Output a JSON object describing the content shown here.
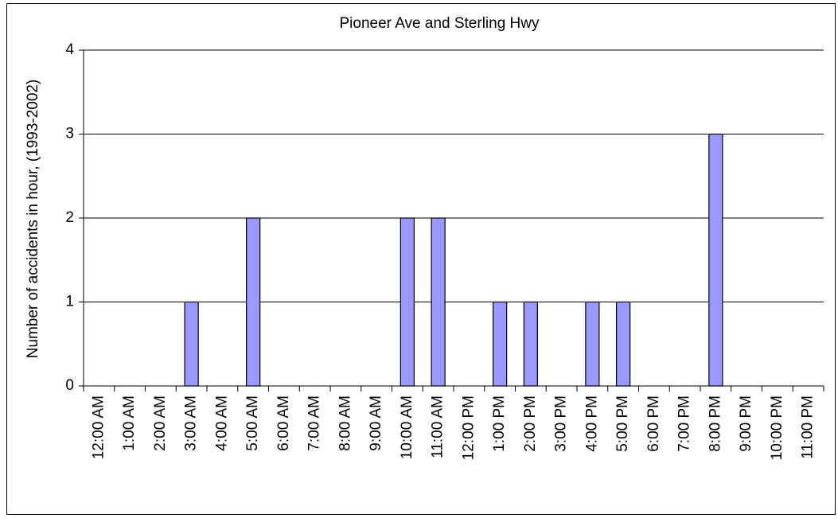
{
  "chart_data": {
    "type": "bar",
    "title": "Pioneer Ave and Sterling Hwy",
    "y_label": "Number of accidents in hour, (1993-2002)",
    "categories": [
      "12:00 AM",
      "1:00 AM",
      "2:00 AM",
      "3:00 AM",
      "4:00 AM",
      "5:00 AM",
      "6:00 AM",
      "7:00 AM",
      "8:00 AM",
      "9:00 AM",
      "10:00 AM",
      "11:00 AM",
      "12:00 PM",
      "1:00 PM",
      "2:00 PM",
      "3:00 PM",
      "4:00 PM",
      "5:00 PM",
      "6:00 PM",
      "7:00 PM",
      "8:00 PM",
      "9:00 PM",
      "10:00 PM",
      "11:00 PM"
    ],
    "values": [
      0,
      0,
      0,
      1,
      0,
      2,
      0,
      0,
      0,
      0,
      2,
      2,
      0,
      1,
      1,
      0,
      1,
      1,
      0,
      0,
      3,
      0,
      0,
      0
    ],
    "color": "#9999ff",
    "ylim": [
      0,
      4
    ],
    "yticks": [
      0,
      1,
      2,
      3,
      4
    ],
    "grid": true
  }
}
